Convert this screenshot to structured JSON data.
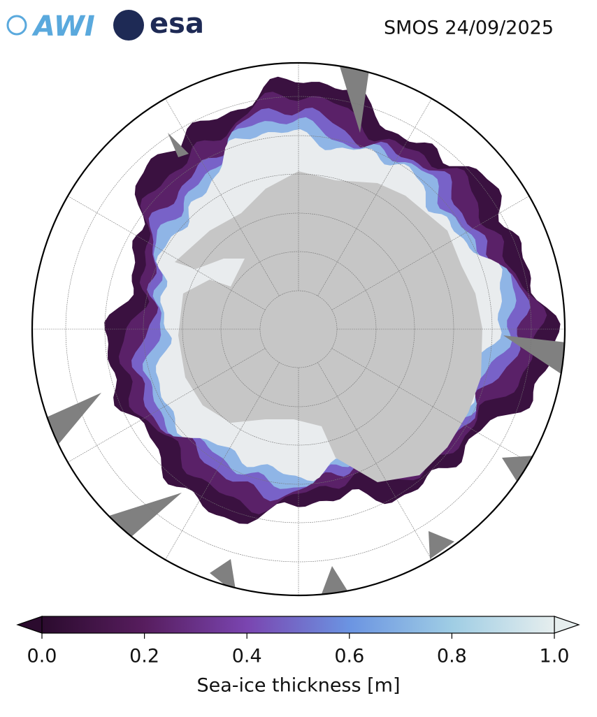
{
  "header": {
    "logos": [
      "AWI",
      "esa"
    ],
    "title": "SMOS 24/09/2025"
  },
  "colorbar": {
    "label": "Sea-ice thickness [m]",
    "lim": [
      0,
      1
    ],
    "ticks": [
      {
        "value": 0,
        "label": "0.0"
      },
      0.2,
      0.4,
      0.6,
      0.8,
      {
        "value": 1,
        "label": "1.0"
      }
    ]
  }
}
